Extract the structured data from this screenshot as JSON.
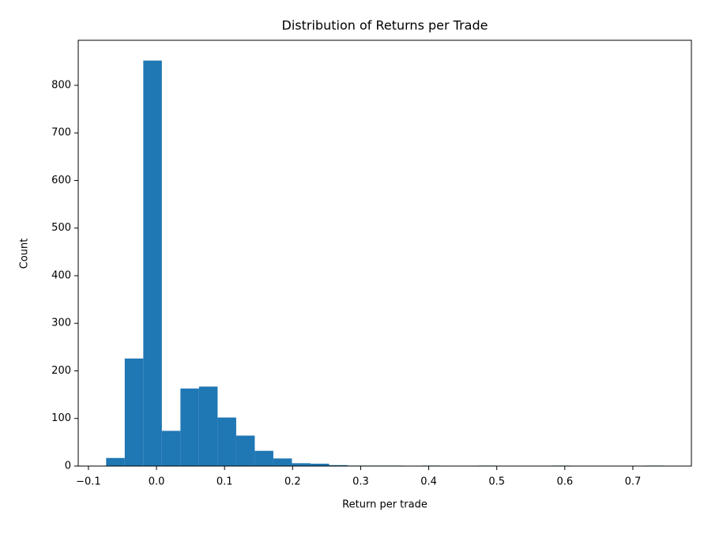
{
  "chart_data": {
    "type": "histogram",
    "title": "Distribution of Returns per Trade",
    "x_label": "Return per trade",
    "y_label": "Count",
    "color": "#1f77b4",
    "bins": [
      -0.074,
      -0.0467,
      -0.0194,
      0.0079,
      0.0352,
      0.0625,
      0.0898,
      0.1171,
      0.1444,
      0.1717,
      0.199,
      0.2263,
      0.2536,
      0.2809,
      0.3082,
      0.3355,
      0.3628,
      0.3901,
      0.4174,
      0.4447,
      0.472,
      0.4993,
      0.5266,
      0.5539,
      0.5812,
      0.6085,
      0.6358,
      0.6631,
      0.6904,
      0.7177,
      0.745
    ],
    "counts": [
      17,
      226,
      852,
      74,
      163,
      167,
      102,
      64,
      32,
      16,
      6,
      5,
      2,
      1,
      1,
      1,
      0,
      1,
      0,
      0,
      1,
      0,
      0,
      0,
      1,
      0,
      0,
      0,
      0,
      1
    ],
    "xlim": [
      -0.115,
      0.786
    ],
    "xticks": [
      {
        "value": -0.1,
        "label": "−0.1"
      },
      {
        "value": 0,
        "label": "0.0"
      },
      0.1,
      0.2,
      0.3,
      0.4,
      0.5,
      0.6,
      0.7
    ],
    "ylim": [
      0,
      894.6
    ],
    "yticks": [
      0,
      100,
      200,
      300,
      400,
      500,
      600,
      700,
      800
    ]
  }
}
